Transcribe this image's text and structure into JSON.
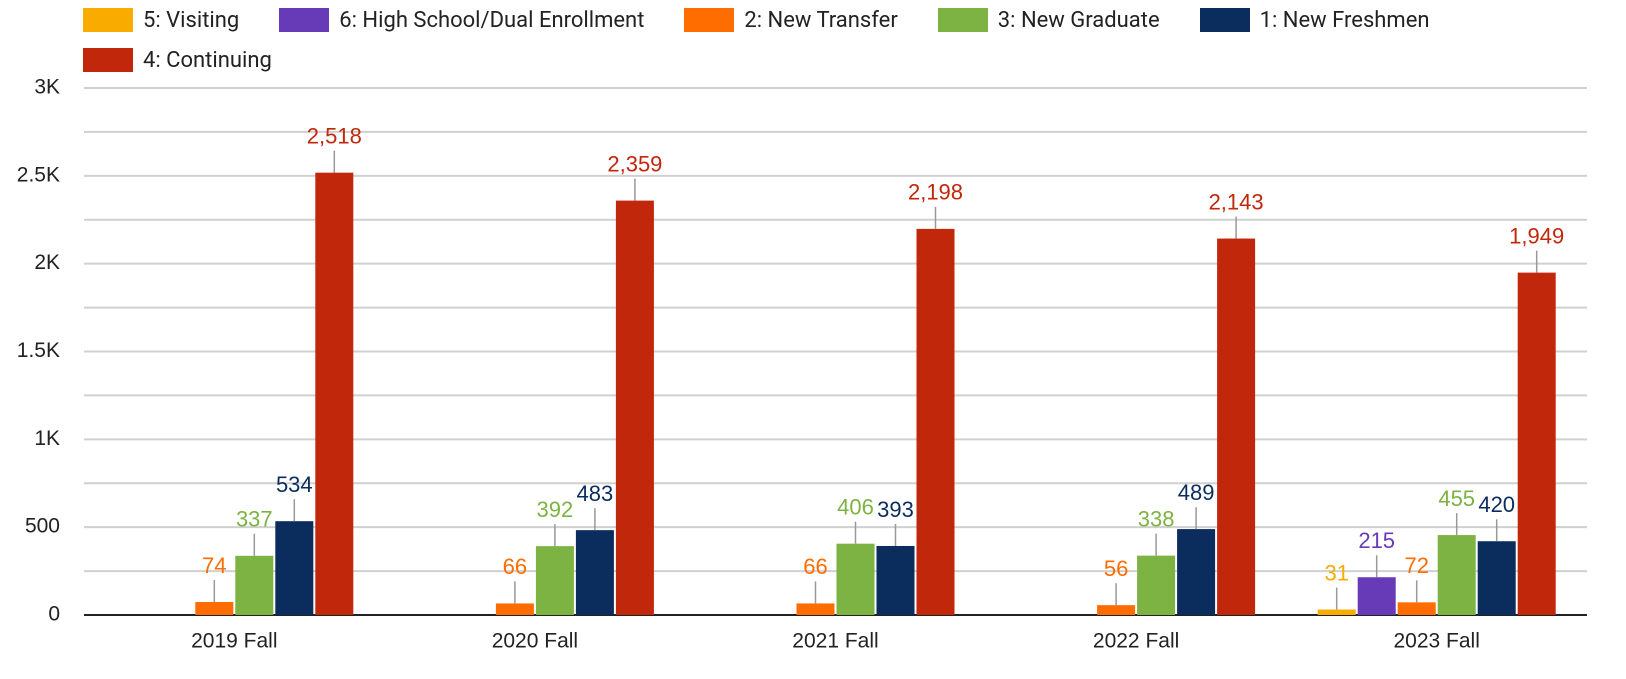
{
  "chart_data": {
    "type": "bar",
    "categories": [
      "2019 Fall",
      "2020 Fall",
      "2021 Fall",
      "2022 Fall",
      "2023 Fall"
    ],
    "series": [
      {
        "name": "5: Visiting",
        "color": "#f9ab00",
        "values": [
          null,
          null,
          null,
          null,
          31
        ]
      },
      {
        "name": "6: High School/Dual Enrollment",
        "color": "#673ab7",
        "values": [
          null,
          null,
          null,
          null,
          215
        ]
      },
      {
        "name": "2: New Transfer",
        "color": "#ff6d01",
        "values": [
          74,
          66,
          66,
          56,
          72
        ]
      },
      {
        "name": "3: New Graduate",
        "color": "#7cb342",
        "values": [
          337,
          392,
          406,
          338,
          455
        ]
      },
      {
        "name": "1: New Freshmen",
        "color": "#0b2d5e",
        "values": [
          534,
          483,
          393,
          489,
          420
        ]
      },
      {
        "name": "4: Continuing",
        "color": "#c0270b",
        "values": [
          2518,
          2359,
          2198,
          2143,
          1949
        ],
        "value_labels": [
          "2,518",
          "2,359",
          "2,198",
          "2,143",
          "1,949"
        ]
      }
    ],
    "ylim": [
      0,
      3000
    ],
    "yticks": [
      0,
      500,
      {
        "value": 1000,
        "label": "1K"
      },
      {
        "value": 1500,
        "label": "1.5K"
      },
      {
        "value": 2000,
        "label": "2K"
      },
      {
        "value": 2500,
        "label": "2.5K"
      },
      {
        "value": 3000,
        "label": "3K"
      }
    ],
    "minor_yticks": [
      250,
      750,
      1250,
      1750,
      2250,
      2750
    ],
    "grid": true,
    "legend": "top"
  }
}
